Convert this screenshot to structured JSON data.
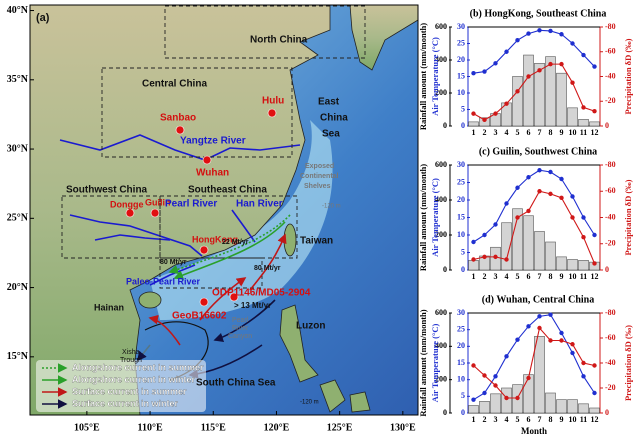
{
  "map": {
    "lonlim": [
      100.5,
      131.2
    ],
    "latlim": [
      10.8,
      40.4
    ],
    "lonticks": [
      {
        "value": 105,
        "label": "105°E"
      },
      {
        "value": 110,
        "label": "110°E"
      },
      {
        "value": 115,
        "label": "115°E"
      },
      {
        "value": 120,
        "label": "120°E"
      },
      {
        "value": 125,
        "label": "125°E"
      },
      {
        "value": 130,
        "label": "130°E"
      }
    ],
    "latticks": [
      {
        "value": 15,
        "label": "15°N"
      },
      {
        "value": 20,
        "label": "20°N"
      },
      {
        "value": 25,
        "label": "25°N"
      },
      {
        "value": 30,
        "label": "30°N"
      },
      {
        "value": 35,
        "label": "35°N"
      },
      {
        "value": 40,
        "label": "40°N"
      }
    ],
    "labels": [
      "(a)",
      "North China",
      "Central China",
      "East",
      "China",
      "Sea",
      "Sanbao",
      "Hulu",
      "Yangtze River",
      "Wuhan",
      "Southwest China",
      "Southeast China",
      "Dongge",
      "Guilin",
      "Pearl River",
      "Han River",
      "HongKong",
      "22 Mt/yr",
      "80 Mt/yr",
      "80 Mt/yr",
      "Taiwan",
      "Paleo-Pearl River",
      "ODP1146/MD05-2904",
      "> 13 Mt/yr",
      "Hainan",
      "GeoB16602",
      "Pearl",
      "River",
      "Canyon",
      "Xisha",
      "Trough",
      "Luzon",
      "South China Sea",
      "Exposed",
      "Continental",
      "Shelves",
      "-120 m",
      "-120 m"
    ],
    "legend": [
      "Alongshore current in summer",
      "Alongshore current in winter",
      "Surface current in summer",
      "Surface current in winter"
    ]
  },
  "chart_data": [
    {
      "type": "combo",
      "title": "(b) HongKong, Southeast China",
      "categories": [
        1,
        2,
        3,
        4,
        5,
        6,
        7,
        8,
        9,
        10,
        11,
        12
      ],
      "ylabel": "Rainfall amount (mm/month)",
      "ylim": [
        0,
        600
      ],
      "yticks": [
        0,
        200,
        400,
        600
      ],
      "y2label": "Air Temperature (°C)",
      "y2lim": [
        0,
        30
      ],
      "y2ticks": [
        0,
        5,
        10,
        15,
        20,
        25,
        30
      ],
      "y3label": "Precipitation δD (‰)",
      "y3lim": [
        0,
        -80
      ],
      "y3ticks": [
        0,
        -20,
        -40,
        -60,
        -80
      ],
      "series": [
        {
          "type": "bar",
          "color": "#d4d4d4",
          "values": [
            25,
            50,
            75,
            140,
            300,
            430,
            380,
            420,
            320,
            110,
            40,
            25
          ]
        },
        {
          "type": "line",
          "axis": "y2",
          "color": "#1f2fd0",
          "values": [
            16,
            16.5,
            19,
            22.5,
            26,
            28,
            29,
            28.8,
            27.8,
            25,
            21.5,
            18
          ]
        },
        {
          "type": "line",
          "axis": "y3",
          "color": "#d01818",
          "values": [
            -10,
            -5,
            -10,
            -18,
            -28,
            -40,
            -45,
            -50,
            -50,
            -35,
            -15,
            -12
          ]
        }
      ]
    },
    {
      "type": "combo",
      "title": "(c) Guilin, Southwest China",
      "categories": [
        1,
        2,
        3,
        4,
        5,
        6,
        7,
        8,
        9,
        10,
        11,
        12
      ],
      "ylabel": "Rainfall amount (mm/month)",
      "ylim": [
        0,
        600
      ],
      "yticks": [
        0,
        200,
        400,
        600
      ],
      "y2label": "Air Temperature (°C)",
      "y2lim": [
        0,
        30
      ],
      "y2ticks": [
        0,
        5,
        10,
        15,
        20,
        25,
        30
      ],
      "y3label": "Precipitation δD (‰)",
      "y3lim": [
        0,
        -80
      ],
      "y3ticks": [
        0,
        -20,
        -40,
        -60,
        -80
      ],
      "series": [
        {
          "type": "bar",
          "color": "#d4d4d4",
          "values": [
            55,
            80,
            130,
            270,
            350,
            310,
            220,
            160,
            75,
            60,
            55,
            45
          ]
        },
        {
          "type": "line",
          "axis": "y2",
          "color": "#1f2fd0",
          "values": [
            8,
            10,
            13,
            19,
            23.5,
            26.5,
            28.5,
            28,
            26,
            21,
            15,
            10
          ]
        },
        {
          "type": "line",
          "axis": "y3",
          "color": "#d01818",
          "values": [
            -8,
            -10,
            -10,
            -8,
            -40,
            -45,
            -60,
            -58,
            -55,
            -40,
            -25,
            -5
          ]
        }
      ]
    },
    {
      "type": "combo",
      "title": "(d) Wuhan, Central China",
      "xlabel": "Month",
      "categories": [
        1,
        2,
        3,
        4,
        5,
        6,
        7,
        8,
        9,
        10,
        11,
        12
      ],
      "ylabel": "Rainfall amount (mm/month)",
      "ylim": [
        0,
        600
      ],
      "yticks": [
        0,
        200,
        400,
        600
      ],
      "y2label": "Air Temperature (°C)",
      "y2lim": [
        0,
        30
      ],
      "y2ticks": [
        0,
        5,
        10,
        15,
        20,
        25,
        30
      ],
      "y3label": "Precipitation δD (‰)",
      "y3lim": [
        0,
        -80
      ],
      "y3ticks": [
        0,
        -20,
        -40,
        -60,
        -80
      ],
      "series": [
        {
          "type": "bar",
          "color": "#d4d4d4",
          "values": [
            45,
            70,
            115,
            150,
            170,
            230,
            460,
            120,
            80,
            80,
            55,
            30
          ]
        },
        {
          "type": "line",
          "axis": "y2",
          "color": "#1f2fd0",
          "values": [
            4,
            6,
            11,
            17,
            22,
            26,
            29,
            29.5,
            24,
            18,
            11,
            6
          ]
        },
        {
          "type": "line",
          "axis": "y3",
          "color": "#d01818",
          "values": [
            -38,
            -30,
            -22,
            -12,
            -12,
            -28,
            -68,
            -58,
            -58,
            -55,
            -40,
            -38
          ]
        }
      ]
    }
  ]
}
